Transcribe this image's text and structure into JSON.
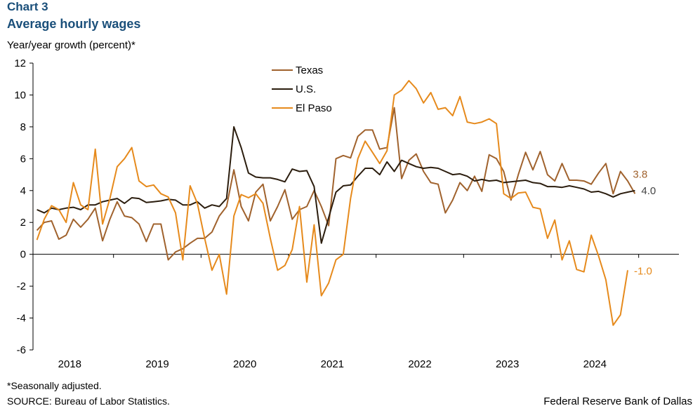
{
  "header": {
    "chart_number": "Chart 3",
    "title": "Average hourly wages",
    "ylabel": "Year/year  growth (percent)*"
  },
  "footer": {
    "note": "*Seasonally adjusted.",
    "source": "SOURCE: Bureau of Labor Statistics.",
    "credit": "Federal Reserve Bank of Dallas"
  },
  "chart_data": {
    "type": "line",
    "title": "Average hourly wages",
    "xlabel": "",
    "ylabel": "Year/year growth (percent)*",
    "ylim": [
      -6,
      12
    ],
    "yticks": [
      -6,
      -4,
      -2,
      0,
      2,
      4,
      6,
      8,
      10,
      12
    ],
    "xlim": [
      2017.58,
      2024.96
    ],
    "year_labels": [
      "2018",
      "2019",
      "2020",
      "2021",
      "2022",
      "2023",
      "2024"
    ],
    "year_label_positions": [
      2018.0,
      2019.0,
      2020.0,
      2021.0,
      2022.0,
      2023.0,
      2024.0
    ],
    "year_boundaries": [
      2017.5,
      2018.5,
      2019.5,
      2020.5,
      2021.5,
      2022.5,
      2023.5,
      2024.5
    ],
    "start": 2017.625,
    "step": 0.08333,
    "series": [
      {
        "name": "Texas",
        "color": "#a0622d",
        "end_label": "3.8",
        "values": [
          1.5,
          2.0,
          2.1,
          0.95,
          1.2,
          2.2,
          1.7,
          2.2,
          2.9,
          0.85,
          2.2,
          3.3,
          2.4,
          2.3,
          1.9,
          0.8,
          1.9,
          1.9,
          -0.35,
          0.15,
          0.35,
          0.7,
          1.0,
          1.0,
          1.4,
          2.4,
          3.0,
          5.3,
          3.0,
          2.1,
          3.9,
          4.4,
          2.1,
          3.0,
          4.05,
          2.2,
          2.8,
          3.0,
          4.0,
          3.0,
          1.8,
          6.0,
          6.2,
          6.05,
          7.4,
          7.8,
          7.8,
          6.6,
          6.7,
          9.2,
          4.75,
          5.9,
          6.3,
          5.2,
          4.5,
          4.4,
          2.6,
          3.4,
          4.5,
          4.0,
          4.9,
          3.95,
          6.25,
          6.0,
          5.2,
          3.4,
          5.0,
          6.4,
          5.3,
          6.45,
          5.0,
          4.6,
          5.7,
          4.65,
          4.65,
          4.6,
          4.4,
          5.1,
          5.7,
          3.8,
          5.2,
          4.6,
          3.8
        ]
      },
      {
        "name": "U.S.",
        "color": "#2b1d0e",
        "end_label": "4.0",
        "values": [
          2.8,
          2.6,
          2.9,
          2.8,
          2.9,
          2.95,
          2.8,
          3.1,
          3.1,
          3.3,
          3.4,
          3.5,
          3.2,
          3.55,
          3.5,
          3.25,
          3.3,
          3.35,
          3.45,
          3.4,
          3.1,
          3.1,
          3.3,
          2.9,
          3.1,
          3.0,
          3.5,
          8.0,
          6.7,
          5.1,
          4.85,
          4.8,
          4.8,
          4.7,
          4.55,
          5.35,
          5.2,
          5.25,
          4.25,
          0.7,
          2.3,
          3.9,
          4.3,
          4.35,
          4.9,
          5.4,
          5.4,
          5.0,
          5.8,
          5.2,
          5.9,
          5.7,
          5.5,
          5.4,
          5.45,
          5.4,
          5.2,
          5.0,
          5.05,
          4.9,
          4.6,
          4.7,
          4.6,
          4.65,
          4.5,
          4.55,
          4.6,
          4.65,
          4.5,
          4.45,
          4.25,
          4.25,
          4.2,
          4.3,
          4.2,
          4.1,
          3.9,
          3.95,
          3.8,
          3.6,
          3.8,
          3.9,
          4.0
        ]
      },
      {
        "name": "El Paso",
        "color": "#e68a1c",
        "end_label": "-1.0",
        "values": [
          0.9,
          2.2,
          3.05,
          2.8,
          2.0,
          4.5,
          3.1,
          2.8,
          6.6,
          1.9,
          3.5,
          5.5,
          6.0,
          6.7,
          4.6,
          4.25,
          4.35,
          3.8,
          3.6,
          2.6,
          -0.35,
          4.3,
          3.2,
          1.0,
          -1.0,
          0.0,
          -2.5,
          2.4,
          3.75,
          3.55,
          3.8,
          3.2,
          1.0,
          -1.0,
          -0.7,
          0.3,
          3.0,
          -1.75,
          1.85,
          -2.6,
          -1.8,
          -0.35,
          0.0,
          3.5,
          6.0,
          7.1,
          6.4,
          5.7,
          6.5,
          10.0,
          10.3,
          10.9,
          10.4,
          9.5,
          10.15,
          9.1,
          9.2,
          8.7,
          9.9,
          8.3,
          8.2,
          8.3,
          8.5,
          8.2,
          3.8,
          3.5,
          3.85,
          3.9,
          2.95,
          2.85,
          1.0,
          2.15,
          -0.35,
          0.85,
          -0.95,
          -1.1,
          1.2,
          -0.1,
          -1.6,
          -4.45,
          -3.8,
          -1.0
        ]
      }
    ]
  }
}
